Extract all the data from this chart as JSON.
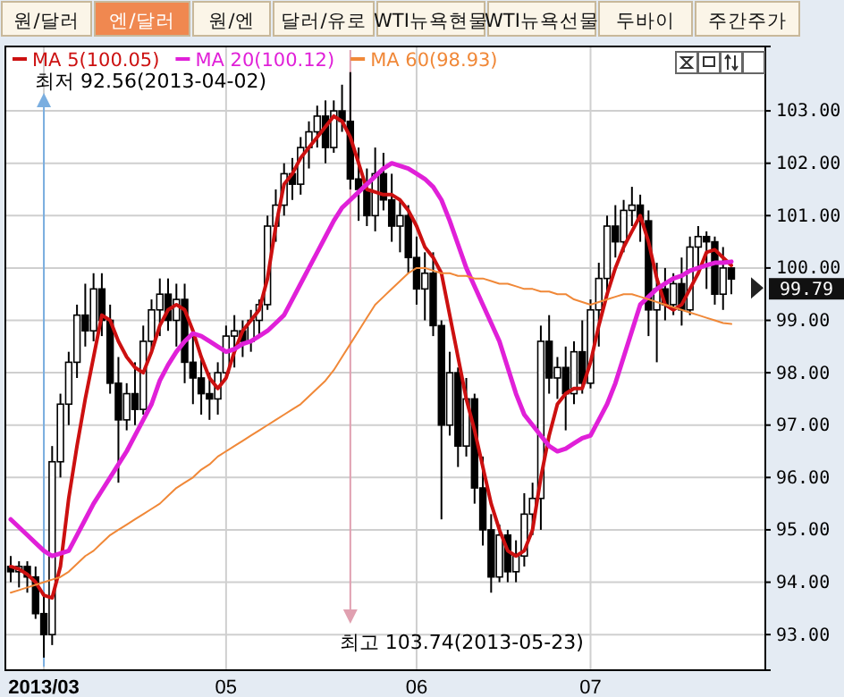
{
  "chart_data": {
    "type": "candlestick",
    "categories": [
      null,
      null,
      null,
      null,
      "2013/03",
      null,
      null,
      null,
      null,
      null,
      null,
      null,
      null,
      null,
      null,
      null,
      null,
      null,
      null,
      null,
      null,
      null,
      null,
      null,
      null,
      null,
      "05",
      null,
      null,
      null,
      null,
      null,
      null,
      null,
      null,
      null,
      null,
      null,
      null,
      null,
      null,
      null,
      null,
      null,
      null,
      null,
      null,
      null,
      null,
      "06",
      null,
      null,
      null,
      null,
      null,
      null,
      null,
      null,
      null,
      null,
      null,
      null,
      null,
      null,
      null,
      null,
      null,
      null,
      null,
      null,
      "07",
      null,
      null,
      null,
      null,
      null,
      null,
      null,
      null,
      null,
      null,
      null,
      null,
      null,
      null,
      null,
      null,
      null
    ],
    "ohlc": [
      [
        94.3,
        94.5,
        94.0,
        94.2
      ],
      [
        94.2,
        94.4,
        93.9,
        94.3
      ],
      [
        94.3,
        94.4,
        93.8,
        94.1
      ],
      [
        94.1,
        94.3,
        93.3,
        93.4
      ],
      [
        93.4,
        93.8,
        92.56,
        93.0
      ],
      [
        93.0,
        96.6,
        92.8,
        96.3
      ],
      [
        96.3,
        97.6,
        96.0,
        97.4
      ],
      [
        97.4,
        98.4,
        97.0,
        98.2
      ],
      [
        98.2,
        99.3,
        97.9,
        99.1
      ],
      [
        99.1,
        99.7,
        98.5,
        98.8
      ],
      [
        98.8,
        99.9,
        98.6,
        99.6
      ],
      [
        99.6,
        99.9,
        98.7,
        99.0
      ],
      [
        99.0,
        99.3,
        97.6,
        97.8
      ],
      [
        97.8,
        98.3,
        95.9,
        97.1
      ],
      [
        97.1,
        97.8,
        96.9,
        97.6
      ],
      [
        97.6,
        98.2,
        97.0,
        97.3
      ],
      [
        97.3,
        98.9,
        97.2,
        98.6
      ],
      [
        98.6,
        99.4,
        98.4,
        99.2
      ],
      [
        99.2,
        99.8,
        98.7,
        99.5
      ],
      [
        99.5,
        99.8,
        98.8,
        99.0
      ],
      [
        99.0,
        99.7,
        98.5,
        99.4
      ],
      [
        99.4,
        99.7,
        97.8,
        98.2
      ],
      [
        98.2,
        98.7,
        97.4,
        97.9
      ],
      [
        97.9,
        98.3,
        97.2,
        97.6
      ],
      [
        97.6,
        98.0,
        97.1,
        97.5
      ],
      [
        97.5,
        98.2,
        97.2,
        98.0
      ],
      [
        98.0,
        98.9,
        97.9,
        98.7
      ],
      [
        98.7,
        99.1,
        98.1,
        98.8
      ],
      [
        98.8,
        99.0,
        98.3,
        98.6
      ],
      [
        98.6,
        99.2,
        98.4,
        99.0
      ],
      [
        99.0,
        99.4,
        98.7,
        99.3
      ],
      [
        99.3,
        101.0,
        99.2,
        100.8
      ],
      [
        100.8,
        101.5,
        100.5,
        101.2
      ],
      [
        101.2,
        102.0,
        101.0,
        101.8
      ],
      [
        101.8,
        102.1,
        101.3,
        101.6
      ],
      [
        101.6,
        102.5,
        101.4,
        102.3
      ],
      [
        102.3,
        102.8,
        101.9,
        102.6
      ],
      [
        102.6,
        103.1,
        102.3,
        102.9
      ],
      [
        102.9,
        103.2,
        102.0,
        102.3
      ],
      [
        102.3,
        103.2,
        102.2,
        103.0
      ],
      [
        103.0,
        103.5,
        102.6,
        102.8
      ],
      [
        102.8,
        103.74,
        101.5,
        101.7
      ],
      [
        101.7,
        102.3,
        100.9,
        101.5
      ],
      [
        101.5,
        101.9,
        100.8,
        101.0
      ],
      [
        101.0,
        102.3,
        100.7,
        101.8
      ],
      [
        101.8,
        102.2,
        101.1,
        101.3
      ],
      [
        101.3,
        101.8,
        100.5,
        100.8
      ],
      [
        100.8,
        101.3,
        100.3,
        101.0
      ],
      [
        101.0,
        101.2,
        99.9,
        100.2
      ],
      [
        100.2,
        100.6,
        99.3,
        99.6
      ],
      [
        99.6,
        100.3,
        99.0,
        99.9
      ],
      [
        99.9,
        100.3,
        98.7,
        98.9
      ],
      [
        98.9,
        99.0,
        95.2,
        97.0
      ],
      [
        97.0,
        98.4,
        96.8,
        98.0
      ],
      [
        98.0,
        98.1,
        96.2,
        96.6
      ],
      [
        96.6,
        97.9,
        96.4,
        97.5
      ],
      [
        97.5,
        97.6,
        95.5,
        95.8
      ],
      [
        95.8,
        96.4,
        94.7,
        95.0
      ],
      [
        95.0,
        95.3,
        93.8,
        94.1
      ],
      [
        94.1,
        95.1,
        94.0,
        94.9
      ],
      [
        94.9,
        95.0,
        94.0,
        94.2
      ],
      [
        94.2,
        94.8,
        94.0,
        94.5
      ],
      [
        94.5,
        95.7,
        94.3,
        95.3
      ],
      [
        95.3,
        95.9,
        94.9,
        95.6
      ],
      [
        95.6,
        98.9,
        95.0,
        98.6
      ],
      [
        98.6,
        99.1,
        97.6,
        97.9
      ],
      [
        97.9,
        98.3,
        97.5,
        98.1
      ],
      [
        98.1,
        98.5,
        96.9,
        97.6
      ],
      [
        97.6,
        98.6,
        97.4,
        98.4
      ],
      [
        98.4,
        99.0,
        97.6,
        97.8
      ],
      [
        97.8,
        99.4,
        97.7,
        99.2
      ],
      [
        99.2,
        100.1,
        98.5,
        99.8
      ],
      [
        99.8,
        101.0,
        99.5,
        100.8
      ],
      [
        100.8,
        101.2,
        100.2,
        100.5
      ],
      [
        100.5,
        101.3,
        100.3,
        101.1
      ],
      [
        101.1,
        101.55,
        100.8,
        101.2
      ],
      [
        101.2,
        101.4,
        100.5,
        100.9
      ],
      [
        100.9,
        101.1,
        98.7,
        99.2
      ],
      [
        99.2,
        100.1,
        98.2,
        99.6
      ],
      [
        99.6,
        100.0,
        99.0,
        99.3
      ],
      [
        99.3,
        99.9,
        99.1,
        99.7
      ],
      [
        99.7,
        100.2,
        98.9,
        99.2
      ],
      [
        99.2,
        100.6,
        99.1,
        100.4
      ],
      [
        100.4,
        100.8,
        100.0,
        100.6
      ],
      [
        100.6,
        100.7,
        99.6,
        100.5
      ],
      [
        100.5,
        100.6,
        99.3,
        99.5
      ],
      [
        99.5,
        100.4,
        99.2,
        100.0
      ],
      [
        100.0,
        100.0,
        99.5,
        99.79
      ]
    ],
    "series": [
      {
        "type": "line",
        "name": "MA 5(100.05)",
        "color": "#cc1010",
        "values": [
          94.3,
          94.25,
          94.15,
          94.0,
          93.75,
          93.7,
          94.3,
          95.6,
          96.6,
          97.5,
          98.3,
          99.1,
          99.0,
          98.6,
          98.3,
          98.1,
          98.0,
          98.4,
          98.9,
          99.2,
          99.3,
          99.2,
          98.8,
          98.3,
          97.9,
          97.7,
          97.9,
          98.4,
          98.8,
          99.0,
          99.2,
          99.8,
          100.8,
          101.6,
          101.8,
          102.1,
          102.3,
          102.5,
          102.7,
          102.9,
          102.8,
          102.5,
          102.0,
          101.5,
          101.45,
          101.4,
          101.4,
          101.3,
          101.1,
          100.8,
          100.4,
          100.2,
          99.9,
          99.1,
          98.3,
          97.5,
          96.9,
          96.2,
          95.5,
          95.0,
          94.6,
          94.5,
          94.6,
          95.0,
          96.0,
          96.8,
          97.4,
          97.6,
          97.7,
          97.7,
          98.2,
          98.9,
          99.5,
          100.0,
          100.4,
          100.7,
          101.0,
          100.5,
          99.8,
          99.3,
          99.2,
          99.3,
          99.6,
          99.9,
          100.3,
          100.35,
          100.2,
          100.05
        ]
      },
      {
        "type": "line",
        "name": "MA 20(100.12)",
        "color": "#e020d8",
        "values": [
          95.2,
          95.05,
          94.9,
          94.75,
          94.6,
          94.5,
          94.55,
          94.6,
          94.9,
          95.2,
          95.5,
          95.75,
          96.0,
          96.25,
          96.5,
          96.8,
          97.1,
          97.4,
          97.85,
          98.15,
          98.4,
          98.6,
          98.75,
          98.7,
          98.6,
          98.5,
          98.4,
          98.45,
          98.55,
          98.6,
          98.7,
          98.8,
          98.95,
          99.1,
          99.4,
          99.7,
          100.0,
          100.3,
          100.6,
          100.9,
          101.15,
          101.3,
          101.45,
          101.6,
          101.75,
          101.9,
          102.0,
          101.95,
          101.9,
          101.8,
          101.7,
          101.55,
          101.3,
          100.9,
          100.45,
          100.0,
          99.65,
          99.3,
          98.95,
          98.6,
          98.1,
          97.6,
          97.2,
          97.0,
          96.8,
          96.6,
          96.5,
          96.55,
          96.65,
          96.75,
          96.8,
          97.1,
          97.4,
          97.8,
          98.3,
          98.8,
          99.3,
          99.45,
          99.6,
          99.7,
          99.8,
          99.85,
          99.95,
          100.0,
          100.05,
          100.1,
          100.1,
          100.12
        ]
      },
      {
        "type": "line",
        "name": "MA 60(98.93)",
        "color": "#f08838",
        "values": [
          93.8,
          93.85,
          93.9,
          93.95,
          94.0,
          94.05,
          94.1,
          94.2,
          94.35,
          94.5,
          94.6,
          94.75,
          94.9,
          95.0,
          95.1,
          95.2,
          95.3,
          95.4,
          95.5,
          95.65,
          95.8,
          95.9,
          96.0,
          96.15,
          96.25,
          96.4,
          96.5,
          96.6,
          96.7,
          96.8,
          96.9,
          97.0,
          97.1,
          97.2,
          97.3,
          97.4,
          97.55,
          97.7,
          97.85,
          98.05,
          98.3,
          98.55,
          98.8,
          99.05,
          99.3,
          99.45,
          99.6,
          99.75,
          99.9,
          100.0,
          100.0,
          99.95,
          99.9,
          99.9,
          99.85,
          99.85,
          99.8,
          99.8,
          99.75,
          99.7,
          99.7,
          99.65,
          99.6,
          99.6,
          99.55,
          99.55,
          99.5,
          99.5,
          99.4,
          99.35,
          99.3,
          99.35,
          99.4,
          99.45,
          99.5,
          99.5,
          99.45,
          99.4,
          99.35,
          99.3,
          99.25,
          99.2,
          99.15,
          99.1,
          99.05,
          99.0,
          98.95,
          98.93
        ]
      }
    ],
    "ylim": [
      92.32,
      104.23
    ],
    "yticks": [
      {
        "value": 93,
        "label": "93.00"
      },
      {
        "value": 94,
        "label": "94.00"
      },
      {
        "value": 95,
        "label": "95.00"
      },
      {
        "value": 96,
        "label": "96.00"
      },
      {
        "value": 97,
        "label": "97.00"
      },
      {
        "value": 98,
        "label": "98.00"
      },
      {
        "value": 99,
        "label": "99.00"
      },
      {
        "value": 100,
        "label": "100.00"
      },
      {
        "value": 101,
        "label": "101.00"
      },
      {
        "value": 102,
        "label": "102.00"
      },
      {
        "value": 103,
        "label": "103.00"
      }
    ],
    "grid": true,
    "legend": "top left",
    "annotations": [
      "원/달러",
      "엔/달러",
      "원/엔",
      "달러/유로",
      "WTI뉴욕현물",
      "WTI뉴욕선물",
      "두바이",
      "주간주가",
      "최저 92.56(2013-04-02)",
      "최고 103.74(2013-05-23)",
      "99.79"
    ]
  }
}
